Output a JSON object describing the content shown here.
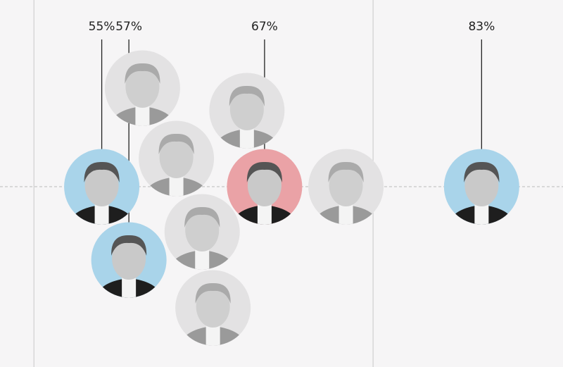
{
  "chart_data": {
    "type": "scatter",
    "x": [
      55,
      57,
      67,
      83,
      62.4,
      60.5,
      65.7,
      58,
      63.2,
      73
    ],
    "value_labels": [
      "55%",
      "57%",
      "67%",
      "83%",
      null,
      null,
      null,
      null,
      null,
      null
    ],
    "colors": [
      "#a9d4ea",
      "#a9d4ea",
      "#eaa2a6",
      "#a9d4ea",
      "#e3e2e3",
      "#e3e2e3",
      "#e3e2e3",
      "#e3e2e3",
      "#e3e2e3",
      "#e3e2e3"
    ],
    "xlim": [
      47.5,
      89
    ],
    "xticks": [
      50,
      75
    ],
    "grid": true
  }
}
